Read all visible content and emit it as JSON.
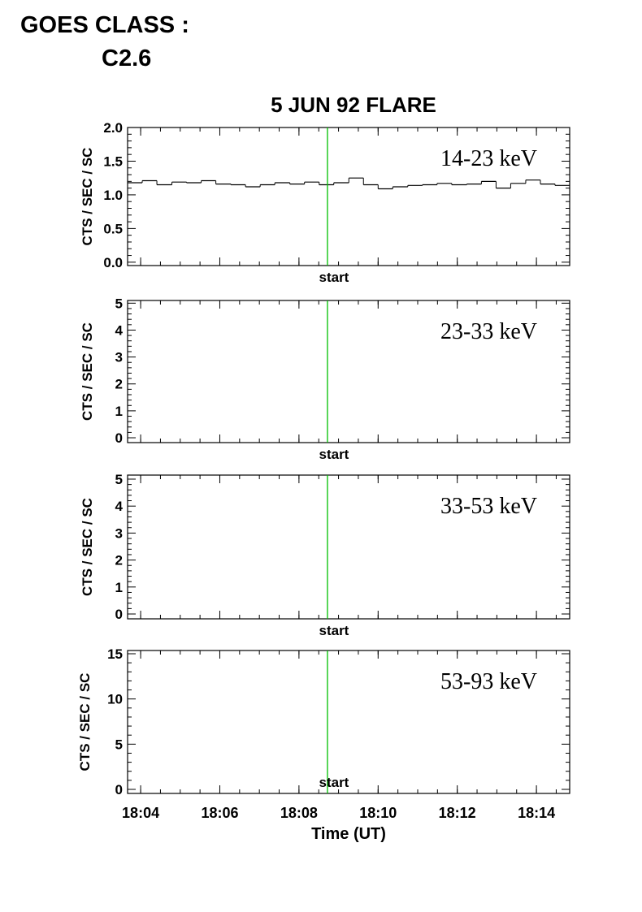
{
  "header": {
    "label": "GOES CLASS :",
    "value": "C2.6"
  },
  "chart_data": [
    {
      "type": "histogram",
      "title": "5 JUN 92 FLARE",
      "ylabel": "CTS / SEC / SC",
      "annotation": "14-23 keV",
      "marker": {
        "x": 8.72,
        "label": "start",
        "color": "#00c000"
      },
      "bins": [
        3.67,
        4.04,
        4.41,
        4.79,
        5.16,
        5.53,
        5.9,
        6.28,
        6.65,
        7.02,
        7.39,
        7.77,
        8.14,
        8.51,
        8.88,
        9.26,
        9.63,
        10.0,
        10.37,
        10.75,
        11.12,
        11.49,
        11.86,
        12.24,
        12.61,
        12.98,
        13.35,
        13.73,
        14.1,
        14.47,
        14.84
      ],
      "values": [
        1.18,
        1.21,
        1.15,
        1.19,
        1.18,
        1.21,
        1.16,
        1.15,
        1.12,
        1.15,
        1.18,
        1.16,
        1.19,
        1.15,
        1.18,
        1.25,
        1.15,
        1.09,
        1.12,
        1.14,
        1.15,
        1.17,
        1.15,
        1.16,
        1.2,
        1.1,
        1.17,
        1.22,
        1.16,
        1.14
      ],
      "color": "#000000",
      "xlim": [
        3.67,
        14.84
      ],
      "ylim": [
        -0.05,
        2.0
      ],
      "yticks": [
        {
          "value": 0,
          "label": "0.0"
        },
        0.5,
        {
          "value": 1,
          "label": "1.0"
        },
        1.5,
        {
          "value": 2,
          "label": "2.0"
        }
      ]
    },
    {
      "type": "histogram",
      "ylabel": "CTS / SEC / SC",
      "annotation": "23-33 keV",
      "marker": {
        "x": 8.72,
        "label": "start",
        "color": "#00c000"
      },
      "xlim": [
        3.67,
        14.84
      ],
      "ylim": [
        -0.18,
        5.1
      ],
      "yticks": [
        0,
        1,
        2,
        3,
        4,
        5
      ]
    },
    {
      "type": "histogram",
      "ylabel": "CTS / SEC / SC",
      "annotation": "33-53 keV",
      "marker": {
        "x": 8.72,
        "label": "start",
        "color": "#00c000"
      },
      "xlim": [
        3.67,
        14.84
      ],
      "ylim": [
        -0.18,
        5.15
      ],
      "yticks": [
        0,
        1,
        2,
        3,
        4,
        5
      ]
    },
    {
      "type": "histogram",
      "ylabel": "CTS / SEC / SC",
      "annotation": "53-93 keV",
      "xlabel": "Time (UT)",
      "marker": {
        "x": 8.72,
        "label": "start",
        "color": "#00c000"
      },
      "xlim": [
        3.67,
        14.84
      ],
      "ylim": [
        -0.45,
        15.36
      ],
      "yticks": [
        0,
        5,
        10,
        15
      ],
      "xticks": [
        {
          "value": 4,
          "label": "18:04"
        },
        {
          "value": 6,
          "label": "18:06"
        },
        {
          "value": 8,
          "label": "18:08"
        },
        {
          "value": 10,
          "label": "18:10"
        },
        {
          "value": 12,
          "label": "18:12"
        },
        {
          "value": 14,
          "label": "18:14"
        }
      ]
    }
  ]
}
